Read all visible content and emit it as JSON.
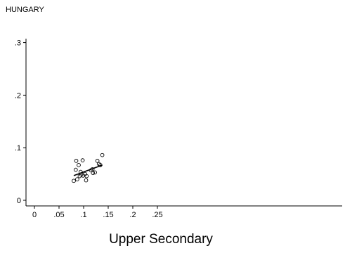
{
  "chart_data": {
    "type": "scatter",
    "title": "HUNGARY",
    "xlabel": "Upper Secondary",
    "ylabel": "",
    "xlim": [
      -0.002,
      0.25
    ],
    "ylim": [
      0,
      0.305
    ],
    "x_ticks": [
      0,
      0.05,
      0.1,
      0.15,
      0.2,
      0.25
    ],
    "x_tick_labels": [
      "0",
      ".05",
      ".1",
      ".15",
      ".2",
      ".25"
    ],
    "y_ticks": [
      0,
      0.1,
      0.2,
      0.3
    ],
    "y_tick_labels": [
      "0",
      ".1",
      ".2",
      ".3"
    ],
    "grid": false,
    "series": [
      {
        "marker": "hollow-circle",
        "x": [
          0.08,
          0.084,
          0.085,
          0.087,
          0.09,
          0.092,
          0.094,
          0.095,
          0.098,
          0.099,
          0.103,
          0.105,
          0.106,
          0.115,
          0.118,
          0.119,
          0.123,
          0.128,
          0.131,
          0.134,
          0.138
        ],
        "y": [
          0.037,
          0.058,
          0.075,
          0.04,
          0.067,
          0.046,
          0.054,
          0.049,
          0.076,
          0.047,
          0.05,
          0.038,
          0.046,
          0.057,
          0.059,
          0.052,
          0.053,
          0.075,
          0.069,
          0.067,
          0.086
        ]
      }
    ],
    "fit_line": {
      "x": [
        0.08,
        0.138
      ],
      "y": [
        0.047,
        0.067
      ]
    }
  },
  "colors": {
    "axis": "#000000",
    "marker_stroke": "#000000",
    "fit_line": "#000000"
  }
}
